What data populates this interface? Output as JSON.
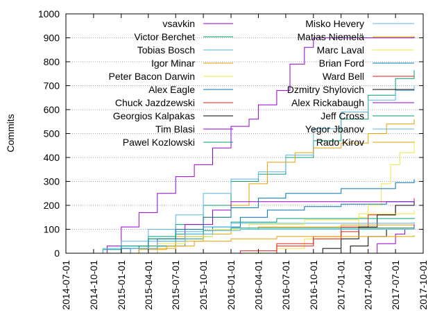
{
  "chart_data": {
    "type": "line",
    "ylabel": "Commits",
    "xlabel": "",
    "ylim": [
      0,
      1000
    ],
    "yticks": [
      0,
      100,
      200,
      300,
      400,
      500,
      600,
      700,
      800,
      900,
      1000
    ],
    "xticks": [
      "2014-07-01",
      "2014-10-01",
      "2015-01-01",
      "2015-04-01",
      "2015-07-01",
      "2015-10-01",
      "2016-01-01",
      "2016-04-01",
      "2016-07-01",
      "2016-10-01",
      "2017-01-01",
      "2017-04-01",
      "2017-07-01",
      "2017-10-01"
    ],
    "xlim": [
      "2014-07-01",
      "2017-10-01"
    ],
    "grid": "horizontal dotted",
    "legend": "top, two columns",
    "series": [
      {
        "name": "vsavkin",
        "color": "#9400d3",
        "points": [
          [
            "2014-10-15",
            0
          ],
          [
            "2014-11-15",
            30
          ],
          [
            "2015-01-01",
            110
          ],
          [
            "2015-03-01",
            170
          ],
          [
            "2015-05-01",
            250
          ],
          [
            "2015-07-01",
            320
          ],
          [
            "2015-09-01",
            370
          ],
          [
            "2015-11-01",
            440
          ],
          [
            "2016-01-01",
            530
          ],
          [
            "2016-03-01",
            560
          ],
          [
            "2016-04-01",
            620
          ],
          [
            "2016-06-01",
            680
          ],
          [
            "2016-07-15",
            790
          ],
          [
            "2016-09-01",
            860
          ],
          [
            "2016-10-01",
            900
          ],
          [
            "2017-09-01",
            905
          ]
        ]
      },
      {
        "name": "Victor Berchet",
        "color": "#009e73",
        "points": [
          [
            "2014-10-01",
            0
          ],
          [
            "2014-11-01",
            15
          ],
          [
            "2015-01-01",
            30
          ],
          [
            "2015-04-01",
            70
          ],
          [
            "2015-07-01",
            120
          ],
          [
            "2015-10-01",
            200
          ],
          [
            "2016-01-01",
            300
          ],
          [
            "2016-04-01",
            330
          ],
          [
            "2016-07-01",
            400
          ],
          [
            "2016-10-01",
            470
          ],
          [
            "2017-01-01",
            560
          ],
          [
            "2017-04-01",
            660
          ],
          [
            "2017-07-01",
            730
          ],
          [
            "2017-09-01",
            765
          ]
        ]
      },
      {
        "name": "Tobias Bosch",
        "color": "#56b4e9",
        "points": [
          [
            "2014-10-01",
            0
          ],
          [
            "2014-11-01",
            20
          ],
          [
            "2015-01-01",
            50
          ],
          [
            "2015-04-01",
            100
          ],
          [
            "2015-07-01",
            160
          ],
          [
            "2015-10-01",
            250
          ],
          [
            "2016-01-01",
            310
          ],
          [
            "2016-04-01",
            340
          ],
          [
            "2016-07-01",
            410
          ],
          [
            "2016-10-01",
            520
          ],
          [
            "2017-01-01",
            590
          ],
          [
            "2017-04-01",
            640
          ],
          [
            "2017-07-01",
            680
          ],
          [
            "2017-09-01",
            700
          ]
        ]
      },
      {
        "name": "Igor Minar",
        "color": "#e69f00",
        "points": [
          [
            "2014-12-01",
            0
          ],
          [
            "2015-03-01",
            30
          ],
          [
            "2015-07-01",
            70
          ],
          [
            "2015-10-01",
            150
          ],
          [
            "2016-01-01",
            200
          ],
          [
            "2016-03-01",
            290
          ],
          [
            "2016-05-01",
            380
          ],
          [
            "2016-08-01",
            420
          ],
          [
            "2016-10-01",
            440
          ],
          [
            "2017-01-01",
            460
          ],
          [
            "2017-04-01",
            500
          ],
          [
            "2017-06-01",
            540
          ],
          [
            "2017-09-01",
            560
          ]
        ]
      },
      {
        "name": "Peter Bacon Darwin",
        "color": "#f0e442",
        "points": [
          [
            "2016-03-01",
            0
          ],
          [
            "2016-06-01",
            20
          ],
          [
            "2016-09-01",
            60
          ],
          [
            "2017-01-01",
            100
          ],
          [
            "2017-03-01",
            150
          ],
          [
            "2017-04-01",
            200
          ],
          [
            "2017-05-15",
            290
          ],
          [
            "2017-06-15",
            370
          ],
          [
            "2017-07-15",
            420
          ],
          [
            "2017-09-01",
            470
          ]
        ]
      },
      {
        "name": "Alex Eagle",
        "color": "#0072b2",
        "points": [
          [
            "2015-02-01",
            0
          ],
          [
            "2015-05-01",
            30
          ],
          [
            "2015-08-01",
            70
          ],
          [
            "2015-11-01",
            110
          ],
          [
            "2016-02-01",
            150
          ],
          [
            "2016-05-01",
            180
          ],
          [
            "2016-09-01",
            195
          ],
          [
            "2017-01-01",
            205
          ],
          [
            "2017-06-01",
            215
          ],
          [
            "2017-09-01",
            220
          ]
        ]
      },
      {
        "name": "Chuck Jazdzewski",
        "color": "#e51e10",
        "points": [
          [
            "2015-10-01",
            0
          ],
          [
            "2016-02-01",
            10
          ],
          [
            "2016-06-01",
            40
          ],
          [
            "2016-10-01",
            70
          ],
          [
            "2017-01-01",
            110
          ],
          [
            "2017-04-01",
            160
          ],
          [
            "2017-07-01",
            200
          ],
          [
            "2017-09-01",
            230
          ]
        ]
      },
      {
        "name": "Georgios Kalpakas",
        "color": "#000000",
        "points": [
          [
            "2016-09-01",
            0
          ],
          [
            "2016-11-01",
            20
          ],
          [
            "2017-01-01",
            60
          ],
          [
            "2017-03-01",
            110
          ],
          [
            "2017-05-01",
            160
          ],
          [
            "2017-07-01",
            200
          ],
          [
            "2017-09-01",
            215
          ]
        ]
      },
      {
        "name": "Tim Blasi",
        "color": "#9400d3",
        "points": [
          [
            "2014-11-01",
            0
          ],
          [
            "2015-02-01",
            20
          ],
          [
            "2015-05-01",
            60
          ],
          [
            "2015-08-01",
            120
          ],
          [
            "2015-11-01",
            180
          ],
          [
            "2016-01-01",
            215
          ],
          [
            "2017-09-01",
            220
          ]
        ]
      },
      {
        "name": "Pawel Kozlowski",
        "color": "#009e73",
        "points": [
          [
            "2015-01-01",
            0
          ],
          [
            "2015-03-01",
            30
          ],
          [
            "2015-07-01",
            60
          ],
          [
            "2015-10-01",
            110
          ],
          [
            "2016-01-01",
            130
          ],
          [
            "2016-06-01",
            145
          ],
          [
            "2017-09-01",
            148
          ]
        ]
      },
      {
        "name": "Misko Hevery",
        "color": "#56b4e9",
        "points": [
          [
            "2014-10-01",
            0
          ],
          [
            "2015-01-01",
            20
          ],
          [
            "2015-04-01",
            50
          ],
          [
            "2015-07-01",
            90
          ],
          [
            "2015-10-01",
            110
          ],
          [
            "2016-01-01",
            125
          ],
          [
            "2017-09-01",
            130
          ]
        ]
      },
      {
        "name": "Matias Niemelä",
        "color": "#e69f00",
        "points": [
          [
            "2014-12-01",
            0
          ],
          [
            "2015-03-01",
            20
          ],
          [
            "2015-07-01",
            50
          ],
          [
            "2015-10-01",
            80
          ],
          [
            "2016-01-01",
            100
          ],
          [
            "2016-04-01",
            110
          ],
          [
            "2017-01-01",
            118
          ],
          [
            "2017-09-01",
            122
          ]
        ]
      },
      {
        "name": "Marc Laval",
        "color": "#f0e442",
        "points": [
          [
            "2015-02-01",
            0
          ],
          [
            "2015-05-01",
            40
          ],
          [
            "2015-08-01",
            70
          ],
          [
            "2015-11-01",
            100
          ],
          [
            "2016-03-01",
            120
          ],
          [
            "2016-09-01",
            140
          ],
          [
            "2017-03-01",
            165
          ],
          [
            "2017-09-01",
            180
          ]
        ]
      },
      {
        "name": "Brian Ford",
        "color": "#0072b2",
        "points": [
          [
            "2014-10-01",
            0
          ],
          [
            "2015-01-01",
            20
          ],
          [
            "2015-04-01",
            60
          ],
          [
            "2015-07-01",
            100
          ],
          [
            "2015-10-01",
            150
          ],
          [
            "2016-01-01",
            190
          ],
          [
            "2016-04-01",
            230
          ],
          [
            "2016-07-01",
            250
          ],
          [
            "2017-01-01",
            270
          ],
          [
            "2017-07-01",
            295
          ],
          [
            "2017-09-01",
            310
          ]
        ]
      },
      {
        "name": "Ward Bell",
        "color": "#e51e10",
        "points": [
          [
            "2016-02-01",
            0
          ],
          [
            "2016-06-01",
            30
          ],
          [
            "2016-10-01",
            60
          ],
          [
            "2017-01-01",
            90
          ],
          [
            "2017-03-01",
            105
          ],
          [
            "2017-09-01",
            112
          ]
        ]
      },
      {
        "name": "Dzmitry Shylovich",
        "color": "#000000",
        "points": [
          [
            "2016-12-01",
            0
          ],
          [
            "2017-02-01",
            30
          ],
          [
            "2017-04-01",
            70
          ],
          [
            "2017-06-01",
            100
          ],
          [
            "2017-09-01",
            115
          ]
        ]
      },
      {
        "name": "Alex Rickabaugh",
        "color": "#9400d3",
        "points": [
          [
            "2017-03-01",
            0
          ],
          [
            "2017-05-01",
            40
          ],
          [
            "2017-07-01",
            80
          ],
          [
            "2017-08-01",
            100
          ],
          [
            "2017-09-01",
            120
          ]
        ]
      },
      {
        "name": "Jeff Cross",
        "color": "#009e73",
        "points": [
          [
            "2014-10-01",
            0
          ],
          [
            "2015-01-01",
            30
          ],
          [
            "2015-04-01",
            60
          ],
          [
            "2015-07-01",
            80
          ],
          [
            "2015-10-01",
            95
          ],
          [
            "2016-01-01",
            105
          ],
          [
            "2017-09-01",
            110
          ]
        ]
      },
      {
        "name": "Yegor Jbanov",
        "color": "#56b4e9",
        "points": [
          [
            "2014-11-01",
            0
          ],
          [
            "2015-02-01",
            20
          ],
          [
            "2015-05-01",
            50
          ],
          [
            "2015-08-01",
            80
          ],
          [
            "2015-11-01",
            95
          ],
          [
            "2016-02-01",
            100
          ],
          [
            "2017-09-01",
            102
          ]
        ]
      },
      {
        "name": "Rado Kirov",
        "color": "#e69f00",
        "points": [
          [
            "2014-12-01",
            0
          ],
          [
            "2015-03-01",
            15
          ],
          [
            "2015-06-01",
            30
          ],
          [
            "2015-09-01",
            50
          ],
          [
            "2016-01-01",
            60
          ],
          [
            "2016-06-01",
            70
          ],
          [
            "2017-09-01",
            75
          ]
        ]
      }
    ]
  }
}
